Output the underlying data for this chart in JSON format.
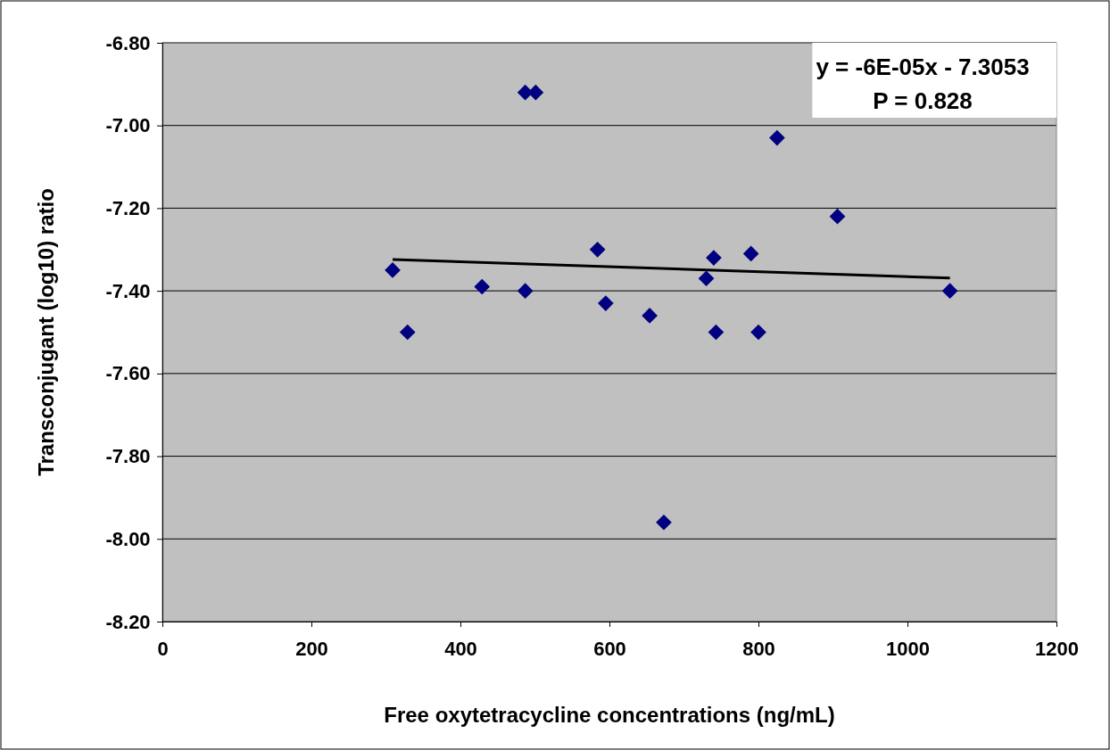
{
  "chart_data": {
    "type": "scatter",
    "xlabel": "Free oxytetracycline concentrations (ng/mL)",
    "ylabel": "Transconjugant (log10) ratio",
    "annotations": [
      "y = -6E-05x - 7.3053",
      "P = 0.828"
    ],
    "xlim": [
      0,
      1200
    ],
    "xticks": [
      0,
      200,
      400,
      600,
      800,
      1000,
      1200
    ],
    "ylim": [
      -8.2,
      -6.8
    ],
    "yticks": [
      {
        "value": -8.2,
        "label": "-8.20"
      },
      {
        "value": -8.0,
        "label": "-8.00"
      },
      {
        "value": -7.8,
        "label": "-7.80"
      },
      {
        "value": -7.6,
        "label": "-7.60"
      },
      {
        "value": -7.4,
        "label": "-7.40"
      },
      {
        "value": -7.2,
        "label": "-7.20"
      },
      {
        "value": -7.0,
        "label": "-7.00"
      },
      {
        "value": -6.8,
        "label": "-6.80"
      }
    ],
    "grid": "y",
    "marker": "diamond",
    "series": [
      {
        "color": "#000080",
        "x": [
          309,
          329,
          429,
          487,
          487,
          501,
          584,
          595,
          654,
          673,
          730,
          740,
          743,
          790,
          800,
          825,
          906,
          1057
        ],
        "values": [
          -7.35,
          -7.5,
          -7.39,
          -7.4,
          -6.92,
          -6.92,
          -7.3,
          -7.43,
          -7.46,
          -7.96,
          -7.37,
          -7.32,
          -7.5,
          -7.31,
          -7.5,
          -7.03,
          -7.22,
          -7.4
        ]
      },
      {
        "type": "line",
        "color": "#000000",
        "line_style": "solid",
        "marker": "none",
        "x": [
          309,
          1057
        ],
        "values": [
          -7.324,
          -7.369
        ]
      }
    ]
  }
}
